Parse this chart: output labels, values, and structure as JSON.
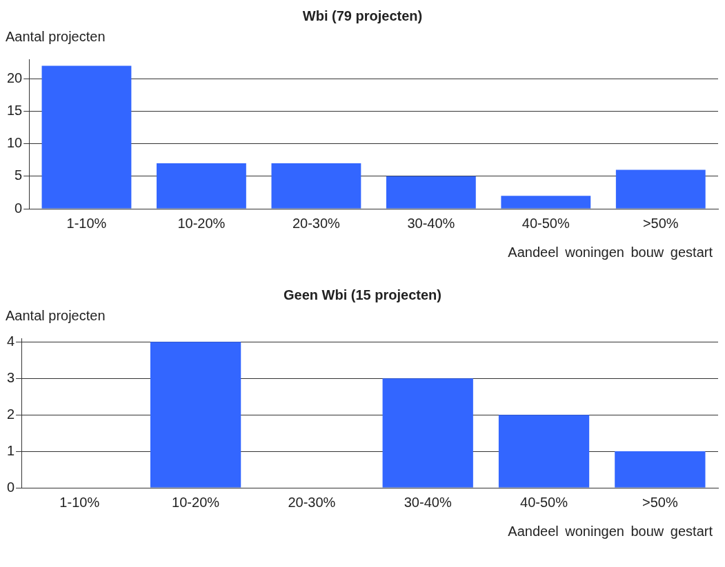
{
  "chart_data": [
    {
      "type": "bar",
      "title": "Wbi (79 projecten)",
      "ylabel": "Aantal projecten",
      "xlabel": "Aandeel woningen bouw gestart",
      "categories": [
        "1-10%",
        "10-20%",
        "20-30%",
        "30-40%",
        "40-50%",
        ">50%"
      ],
      "values": [
        22,
        7,
        7,
        5,
        2,
        6
      ],
      "color": "#3366ff",
      "ylim": [
        0,
        23
      ],
      "yticks": [
        0,
        5,
        10,
        15,
        20
      ],
      "grid": "y",
      "legend": false
    },
    {
      "type": "bar",
      "title": "Geen Wbi (15 projecten)",
      "ylabel": "Aantal projecten",
      "xlabel": "Aandeel woningen bouw gestart",
      "categories": [
        "1-10%",
        "10-20%",
        "20-30%",
        "30-40%",
        "40-50%",
        ">50%"
      ],
      "values": [
        0,
        4,
        0,
        3,
        2,
        1
      ],
      "color": "#3366ff",
      "ylim": [
        0,
        4.1
      ],
      "yticks": [
        0,
        1,
        2,
        3,
        4
      ],
      "grid": "y",
      "legend": false
    }
  ]
}
